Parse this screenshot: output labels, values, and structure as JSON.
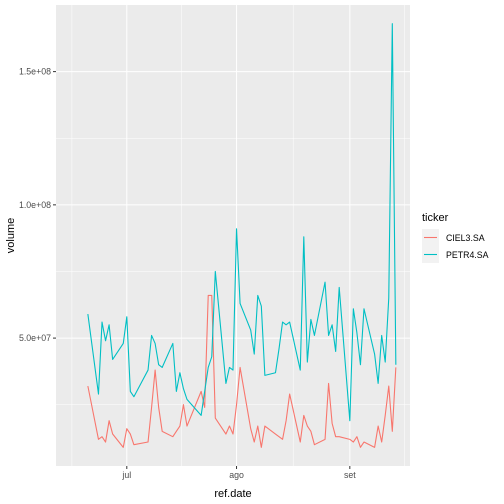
{
  "chart_data": {
    "type": "line",
    "xlabel": "ref.date",
    "ylabel": "volume",
    "x_ticks": [
      {
        "label": "jul",
        "day": 14
      },
      {
        "label": "ago",
        "day": 45
      },
      {
        "label": "set",
        "day": 77
      }
    ],
    "y_ticks": [
      {
        "label": "5.0e+07",
        "value": 50000000
      },
      {
        "label": "1.0e+08",
        "value": 100000000
      },
      {
        "label": "1.5e+08",
        "value": 150000000
      }
    ],
    "xlim": [
      -6,
      94
    ],
    "ylim": [
      2000000,
      175000000
    ],
    "grid": true,
    "legend": {
      "title": "ticker",
      "position": "right"
    },
    "series": [
      {
        "name": "CIEL3.SA",
        "color": "#F8766D",
        "points": [
          [
            3,
            32000000
          ],
          [
            6,
            12000000
          ],
          [
            7,
            13000000
          ],
          [
            8,
            11000000
          ],
          [
            9,
            19000000
          ],
          [
            10,
            14000000
          ],
          [
            13,
            9000000
          ],
          [
            14,
            16000000
          ],
          [
            15,
            14000000
          ],
          [
            16,
            10000000
          ],
          [
            20,
            11000000
          ],
          [
            21,
            24000000
          ],
          [
            22,
            38000000
          ],
          [
            23,
            24000000
          ],
          [
            24,
            15000000
          ],
          [
            27,
            13000000
          ],
          [
            28,
            15000000
          ],
          [
            29,
            17000000
          ],
          [
            30,
            25000000
          ],
          [
            31,
            17000000
          ],
          [
            35,
            30000000
          ],
          [
            36,
            24000000
          ],
          [
            37,
            66000000
          ],
          [
            38,
            66000000
          ],
          [
            39,
            20000000
          ],
          [
            42,
            14000000
          ],
          [
            43,
            17000000
          ],
          [
            44,
            14000000
          ],
          [
            45,
            25000000
          ],
          [
            46,
            39000000
          ],
          [
            49,
            16000000
          ],
          [
            50,
            11000000
          ],
          [
            51,
            17000000
          ],
          [
            52,
            9000000
          ],
          [
            53,
            17000000
          ],
          [
            56,
            14000000
          ],
          [
            57,
            13000000
          ],
          [
            58,
            12000000
          ],
          [
            59,
            19000000
          ],
          [
            60,
            29000000
          ],
          [
            63,
            11000000
          ],
          [
            64,
            21000000
          ],
          [
            65,
            17000000
          ],
          [
            66,
            15000000
          ],
          [
            67,
            10000000
          ],
          [
            70,
            12000000
          ],
          [
            71,
            33000000
          ],
          [
            72,
            18000000
          ],
          [
            73,
            13000000
          ],
          [
            74,
            13000000
          ],
          [
            77,
            12000000
          ],
          [
            78,
            11000000
          ],
          [
            79,
            13000000
          ],
          [
            80,
            9000000
          ],
          [
            81,
            11000000
          ],
          [
            84,
            9000000
          ],
          [
            85,
            17000000
          ],
          [
            86,
            11000000
          ],
          [
            87,
            21000000
          ],
          [
            88,
            32000000
          ],
          [
            89,
            15000000
          ],
          [
            90,
            39000000
          ]
        ]
      },
      {
        "name": "PETR4.SA",
        "color": "#00BFC4",
        "points": [
          [
            3,
            59000000
          ],
          [
            6,
            29000000
          ],
          [
            7,
            56000000
          ],
          [
            8,
            49000000
          ],
          [
            9,
            55000000
          ],
          [
            10,
            42000000
          ],
          [
            13,
            48000000
          ],
          [
            14,
            58000000
          ],
          [
            15,
            30000000
          ],
          [
            16,
            28000000
          ],
          [
            20,
            38000000
          ],
          [
            21,
            51000000
          ],
          [
            22,
            48000000
          ],
          [
            23,
            40000000
          ],
          [
            24,
            39000000
          ],
          [
            27,
            48000000
          ],
          [
            28,
            30000000
          ],
          [
            29,
            37000000
          ],
          [
            30,
            31000000
          ],
          [
            31,
            27000000
          ],
          [
            35,
            21000000
          ],
          [
            36,
            30000000
          ],
          [
            37,
            39000000
          ],
          [
            38,
            43000000
          ],
          [
            39,
            75000000
          ],
          [
            42,
            33000000
          ],
          [
            43,
            39000000
          ],
          [
            44,
            38000000
          ],
          [
            45,
            91000000
          ],
          [
            46,
            63000000
          ],
          [
            49,
            53000000
          ],
          [
            50,
            44000000
          ],
          [
            51,
            66000000
          ],
          [
            52,
            62000000
          ],
          [
            53,
            36000000
          ],
          [
            56,
            37000000
          ],
          [
            57,
            46000000
          ],
          [
            58,
            56000000
          ],
          [
            59,
            55000000
          ],
          [
            60,
            56000000
          ],
          [
            63,
            38000000
          ],
          [
            64,
            88000000
          ],
          [
            65,
            41000000
          ],
          [
            66,
            57000000
          ],
          [
            67,
            51000000
          ],
          [
            70,
            71000000
          ],
          [
            71,
            51000000
          ],
          [
            72,
            55000000
          ],
          [
            73,
            45000000
          ],
          [
            74,
            69000000
          ],
          [
            77,
            19000000
          ],
          [
            78,
            61000000
          ],
          [
            79,
            52000000
          ],
          [
            80,
            40000000
          ],
          [
            81,
            61000000
          ],
          [
            84,
            44000000
          ],
          [
            85,
            33000000
          ],
          [
            86,
            51000000
          ],
          [
            87,
            41000000
          ],
          [
            88,
            65000000
          ],
          [
            89,
            168000000
          ],
          [
            90,
            40000000
          ]
        ]
      }
    ]
  }
}
